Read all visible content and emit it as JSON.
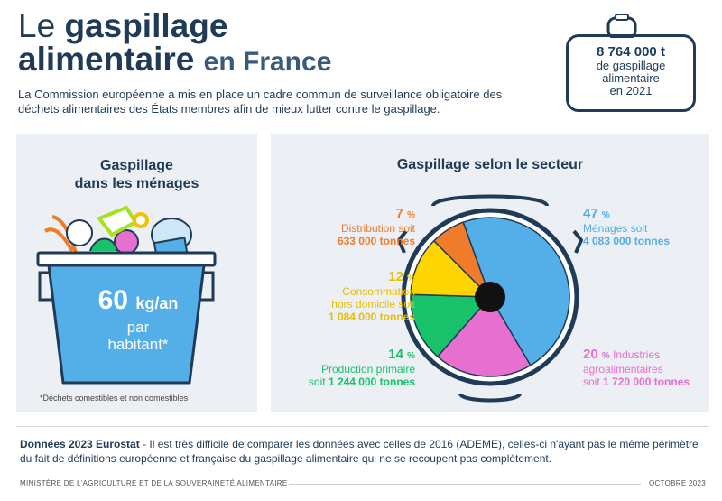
{
  "header": {
    "title_line1_a": "Le ",
    "title_line1_b": "gaspillage",
    "title_line2_a": "alimentaire ",
    "title_line2_b": "en France",
    "intro": "La Commission européenne a mis en place un cadre commun de surveillance obligatoire des déchets alimentaires des États membres afin de mieux lutter contre le gaspillage."
  },
  "badge": {
    "number": "8 764 000 t",
    "text1": "de gaspillage",
    "text2": "alimentaire",
    "text3": "en 2021"
  },
  "households": {
    "title1": "Gaspillage",
    "title2": "dans les ménages",
    "value": "60",
    "unit": "kg/an",
    "line1": "par",
    "line2": "habitant*",
    "footnote": "*Déchets comestibles et non comestibles"
  },
  "sectors": {
    "title": "Gaspillage selon le secteur",
    "items": [
      {
        "pct": "7",
        "sym": "%",
        "label1": "Distribution soit",
        "label2": "",
        "amount": "633 000 tonnes",
        "color": "#f07b2a"
      },
      {
        "pct": "12",
        "sym": "%",
        "label1": "Consommation",
        "label2": "hors domicile soit",
        "amount": "1 084 000 tonnes",
        "color": "#ffd500"
      },
      {
        "pct": "14",
        "sym": "%",
        "label1": "Production primaire",
        "label2": "soit ",
        "amount": "1 244 000 tonnes",
        "color": "#17c26a"
      },
      {
        "pct": "47",
        "sym": "%",
        "label1": "Ménages soit",
        "label2": "",
        "amount": "4 083 000 tonnes",
        "color": "#54aee8"
      },
      {
        "pct": "20",
        "sym": "%",
        "label1": " Industries",
        "label2": "agroalimentaires",
        "amount": "1 720 000 tonnes",
        "color": "#e66fd0"
      }
    ]
  },
  "chart_data": {
    "type": "pie",
    "title": "Gaspillage selon le secteur",
    "categories": [
      "Ménages",
      "Industries agroalimentaires",
      "Production primaire",
      "Consommation hors domicile",
      "Distribution"
    ],
    "values": [
      47,
      20,
      14,
      12,
      7
    ],
    "colors": [
      "#54aee8",
      "#e66fd0",
      "#17c26a",
      "#ffd500",
      "#f07b2a"
    ]
  },
  "source": {
    "bold": "Données 2023 Eurostat",
    "text": " - Il est très difficile de comparer les données avec celles de 2016 (ADEME), celles-ci n'ayant pas le même périmètre du fait de définitions européenne et française du gaspillage alimentaire qui ne se recoupent pas complètement."
  },
  "footer": {
    "left": "MINISTÈRE DE L'AGRICULTURE ET DE LA SOUVERAINETÉ ALIMENTAIRE",
    "right": "OCTOBRE 2023"
  },
  "colors": {
    "navy": "#1f3b57",
    "panel": "#eceff3",
    "bucket": "#54aee8"
  }
}
